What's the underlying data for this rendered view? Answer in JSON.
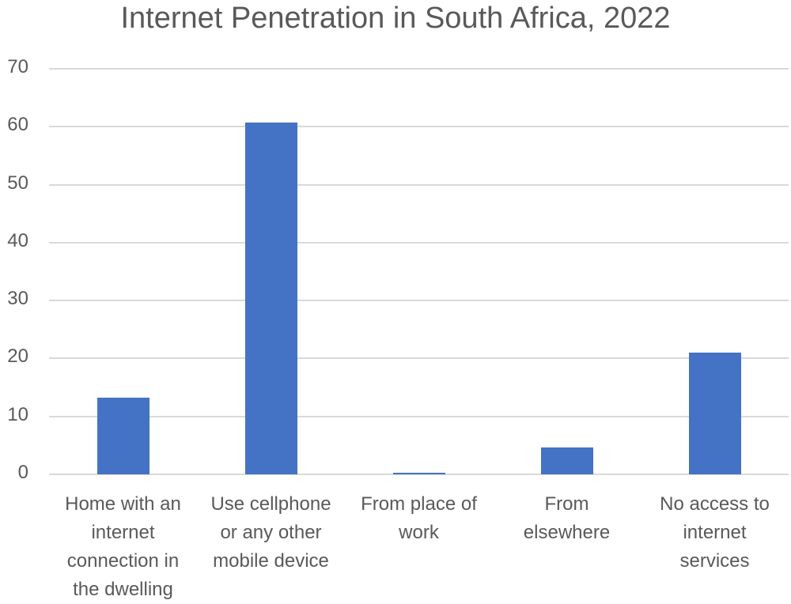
{
  "chart_data": {
    "type": "bar",
    "title": "Internet Penetration in South Africa, 2022",
    "xlabel": "",
    "ylabel": "",
    "ylim": [
      0,
      70
    ],
    "yticks": [
      0,
      10,
      20,
      30,
      40,
      50,
      60,
      70
    ],
    "grid": true,
    "legend": null,
    "bar_color": "#4472c4",
    "categories": [
      "Home with an internet connection in the dwelling",
      "Use cellphone or any other mobile device",
      "From place of work",
      "From elsewhere",
      "No access to internet services"
    ],
    "values": [
      13.2,
      60.7,
      0.3,
      4.7,
      21.0
    ]
  },
  "labels": {
    "title": "Internet Penetration in South Africa, 2022",
    "yticks": [
      "0",
      "10",
      "20",
      "30",
      "40",
      "50",
      "60",
      "70"
    ],
    "x": [
      [
        "Home with an",
        "internet",
        "connection in",
        "the dwelling"
      ],
      [
        "Use cellphone",
        "or any other",
        "mobile device"
      ],
      [
        "From place of",
        "work"
      ],
      [
        "From",
        "elsewhere"
      ],
      [
        "No access to",
        "internet",
        "services"
      ]
    ]
  }
}
